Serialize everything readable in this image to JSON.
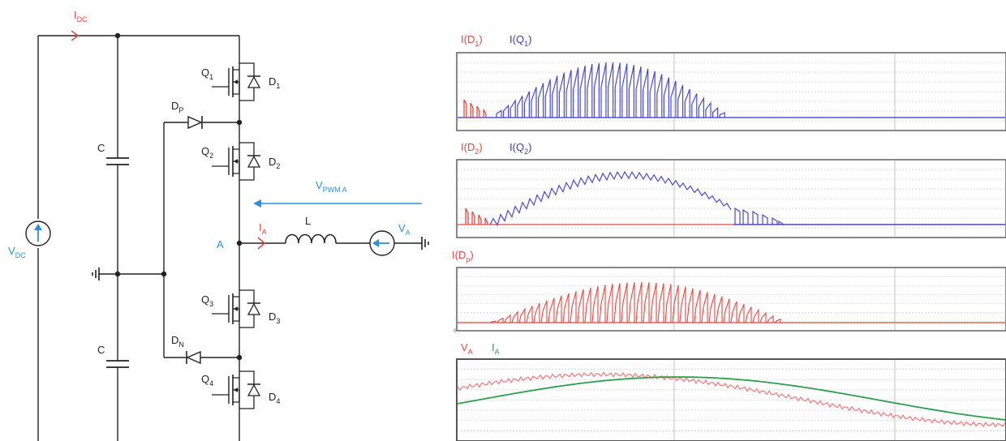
{
  "circuit": {
    "idc": {
      "main": "I",
      "sub": "DC"
    },
    "vdc": {
      "main": "V",
      "sub": "DC"
    },
    "cap_top": "C",
    "cap_bottom": "C",
    "q1": {
      "main": "Q",
      "sub": "1"
    },
    "q2": {
      "main": "Q",
      "sub": "2"
    },
    "q3": {
      "main": "Q",
      "sub": "3"
    },
    "q4": {
      "main": "Q",
      "sub": "4"
    },
    "d1": {
      "main": "D",
      "sub": "1"
    },
    "d2": {
      "main": "D",
      "sub": "2"
    },
    "d3": {
      "main": "D",
      "sub": "3"
    },
    "d4": {
      "main": "D",
      "sub": "4"
    },
    "dp": {
      "main": "D",
      "sub": "P"
    },
    "dn": {
      "main": "D",
      "sub": "N"
    },
    "vpwm": {
      "main": "V",
      "sub": "PWM A"
    },
    "ia": {
      "main": "I",
      "sub": "A"
    },
    "inductor": "L",
    "node_a": "A",
    "va": {
      "main": "V",
      "sub": "A"
    }
  },
  "plots": {
    "p1_legend": [
      {
        "main": "I(D",
        "sub": "1",
        "tail": ")",
        "color": "#e8473f"
      },
      {
        "main": "I(Q",
        "sub": "1",
        "tail": ")",
        "color": "#3b3bb8"
      }
    ],
    "p2_legend": [
      {
        "main": "I(D",
        "sub": "2",
        "tail": ")",
        "color": "#e8473f"
      },
      {
        "main": "I(Q",
        "sub": "2",
        "tail": ")",
        "color": "#3b3bb8"
      }
    ],
    "p3_legend": [
      {
        "main": "I(D",
        "sub": "p",
        "tail": ")",
        "color": "#e8473f"
      }
    ],
    "p3_tick": "0",
    "p4_legend": [
      {
        "main": "V",
        "sub": "A",
        "tail": "",
        "color": "#e8473f"
      },
      {
        "main": "I",
        "sub": "A",
        "tail": "",
        "color": "#2e9e4a"
      }
    ]
  }
}
